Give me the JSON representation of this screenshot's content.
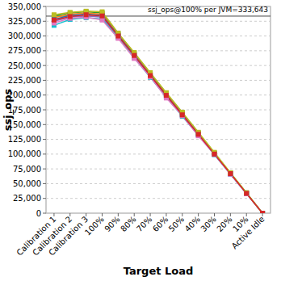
{
  "chart_data": {
    "type": "line",
    "x_label": "Target Load",
    "y_label": "ssj_ops",
    "categories": [
      "Calibration 1",
      "Calibration 2",
      "Calibration 3",
      "100%",
      "90%",
      "80%",
      "70%",
      "60%",
      "50%",
      "40%",
      "30%",
      "20%",
      "10%",
      "Active Idle"
    ],
    "ylim": [
      0,
      350000
    ],
    "yticks": [
      0,
      {
        "value": 25000,
        "label": "25,000"
      },
      {
        "value": 50000,
        "label": "50,000"
      },
      {
        "value": 75000,
        "label": "75,000"
      },
      {
        "value": 100000,
        "label": "100,000"
      },
      {
        "value": 125000,
        "label": "125,000"
      },
      {
        "value": 150000,
        "label": "150,000"
      },
      {
        "value": 175000,
        "label": "175,000"
      },
      {
        "value": 200000,
        "label": "200,000"
      },
      {
        "value": 225000,
        "label": "225,000"
      },
      {
        "value": 250000,
        "label": "250,000"
      },
      {
        "value": 275000,
        "label": "275,000"
      },
      {
        "value": 300000,
        "label": "300,000"
      },
      {
        "value": 325000,
        "label": "325,000"
      },
      {
        "value": 350000,
        "label": "350,000"
      }
    ],
    "grid": true,
    "marker": "square",
    "reference_line": {
      "value": 333643,
      "label": "ssj_ops@100% per JVM=333,643"
    },
    "series": [
      {
        "color": "#2ca02c",
        "values": [
          334000,
          339000,
          341000,
          339000,
          304000,
          271000,
          237000,
          203000,
          170000,
          136000,
          102000,
          68000,
          34500,
          0
        ]
      },
      {
        "color": "#ff7f0e",
        "values": [
          331000,
          337000,
          339000,
          337000,
          302000,
          269000,
          235000,
          201000,
          168000,
          135000,
          101000,
          67500,
          34000,
          0
        ]
      },
      {
        "color": "#1f77b4",
        "values": [
          328000,
          335000,
          337000,
          335000,
          301000,
          268000,
          234000,
          200000,
          167000,
          134000,
          100500,
          67000,
          33500,
          0
        ]
      },
      {
        "color": "#9467bd",
        "values": [
          325000,
          332000,
          334000,
          332000,
          299000,
          266000,
          232000,
          199000,
          166000,
          133000,
          100000,
          66500,
          33500,
          0
        ]
      },
      {
        "color": "#17becf",
        "values": [
          318000,
          328000,
          331000,
          329000,
          297000,
          263000,
          230000,
          197000,
          164000,
          132000,
          99000,
          66000,
          33000,
          0
        ]
      },
      {
        "color": "#e377c2",
        "values": [
          322000,
          330000,
          332000,
          327000,
          296000,
          262000,
          231000,
          195000,
          165000,
          131000,
          99500,
          66000,
          33000,
          0
        ]
      },
      {
        "color": "#bcbd22",
        "values": [
          336000,
          340000,
          342000,
          341000,
          305000,
          272000,
          238000,
          204000,
          171000,
          137000,
          103000,
          68500,
          34500,
          0
        ]
      },
      {
        "color": "#d62728",
        "values": [
          327000,
          333000,
          336000,
          334000,
          300000,
          267000,
          233000,
          199500,
          166500,
          133500,
          100000,
          67000,
          33500,
          0
        ]
      }
    ]
  }
}
